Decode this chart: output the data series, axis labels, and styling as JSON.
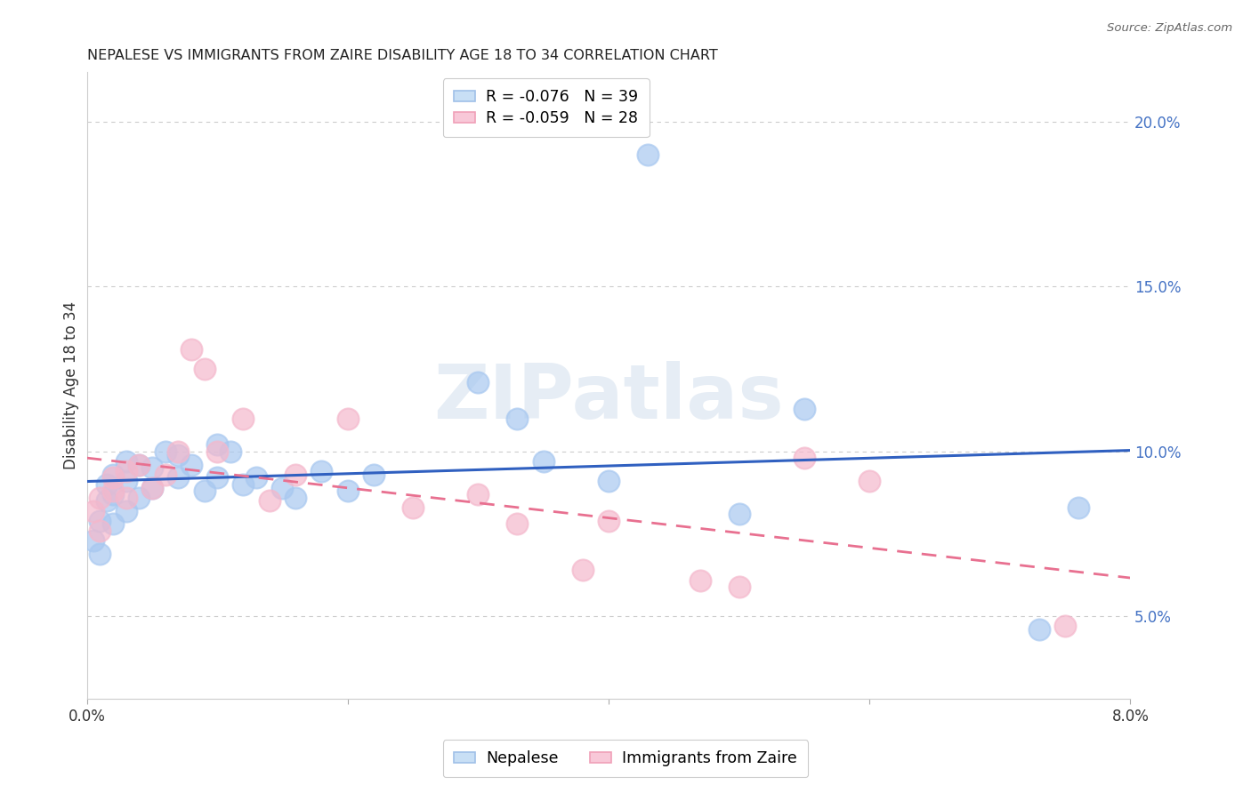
{
  "title": "NEPALESE VS IMMIGRANTS FROM ZAIRE DISABILITY AGE 18 TO 34 CORRELATION CHART",
  "source": "Source: ZipAtlas.com",
  "ylabel": "Disability Age 18 to 34",
  "xlim": [
    0.0,
    0.08
  ],
  "ylim": [
    0.025,
    0.215
  ],
  "right_ytick_vals": [
    0.2,
    0.15,
    0.1,
    0.05
  ],
  "right_ytick_labels": [
    "20.0%",
    "15.0%",
    "10.0%",
    "5.0%"
  ],
  "nepalese_color": "#a8c8f0",
  "zaire_color": "#f4b8cc",
  "line_blue": "#3060c0",
  "line_pink": "#e87090",
  "background_color": "#ffffff",
  "nepalese_x": [
    0.0005,
    0.001,
    0.001,
    0.0015,
    0.0015,
    0.002,
    0.002,
    0.002,
    0.003,
    0.003,
    0.003,
    0.004,
    0.004,
    0.005,
    0.005,
    0.006,
    0.007,
    0.007,
    0.008,
    0.009,
    0.01,
    0.01,
    0.011,
    0.012,
    0.013,
    0.015,
    0.016,
    0.018,
    0.02,
    0.022,
    0.03,
    0.033,
    0.035,
    0.04,
    0.043,
    0.05,
    0.055,
    0.073,
    0.076
  ],
  "nepalese_y": [
    0.073,
    0.069,
    0.079,
    0.09,
    0.085,
    0.093,
    0.087,
    0.078,
    0.097,
    0.091,
    0.082,
    0.096,
    0.086,
    0.095,
    0.089,
    0.1,
    0.099,
    0.092,
    0.096,
    0.088,
    0.102,
    0.092,
    0.1,
    0.09,
    0.092,
    0.089,
    0.086,
    0.094,
    0.088,
    0.093,
    0.121,
    0.11,
    0.097,
    0.091,
    0.19,
    0.081,
    0.113,
    0.046,
    0.083
  ],
  "zaire_x": [
    0.0005,
    0.001,
    0.001,
    0.002,
    0.002,
    0.003,
    0.003,
    0.004,
    0.005,
    0.006,
    0.007,
    0.008,
    0.009,
    0.01,
    0.012,
    0.014,
    0.016,
    0.02,
    0.025,
    0.03,
    0.033,
    0.038,
    0.04,
    0.047,
    0.05,
    0.055,
    0.06,
    0.075
  ],
  "zaire_y": [
    0.082,
    0.076,
    0.086,
    0.092,
    0.088,
    0.094,
    0.086,
    0.096,
    0.089,
    0.093,
    0.1,
    0.131,
    0.125,
    0.1,
    0.11,
    0.085,
    0.093,
    0.11,
    0.083,
    0.087,
    0.078,
    0.064,
    0.079,
    0.061,
    0.059,
    0.098,
    0.091,
    0.047
  ],
  "watermark_text": "ZIPatlas",
  "legend1_text": "R = -0.076   N = 39",
  "legend2_text": "R = -0.059   N = 28",
  "bottom_legend1": "Nepalese",
  "bottom_legend2": "Immigrants from Zaire"
}
